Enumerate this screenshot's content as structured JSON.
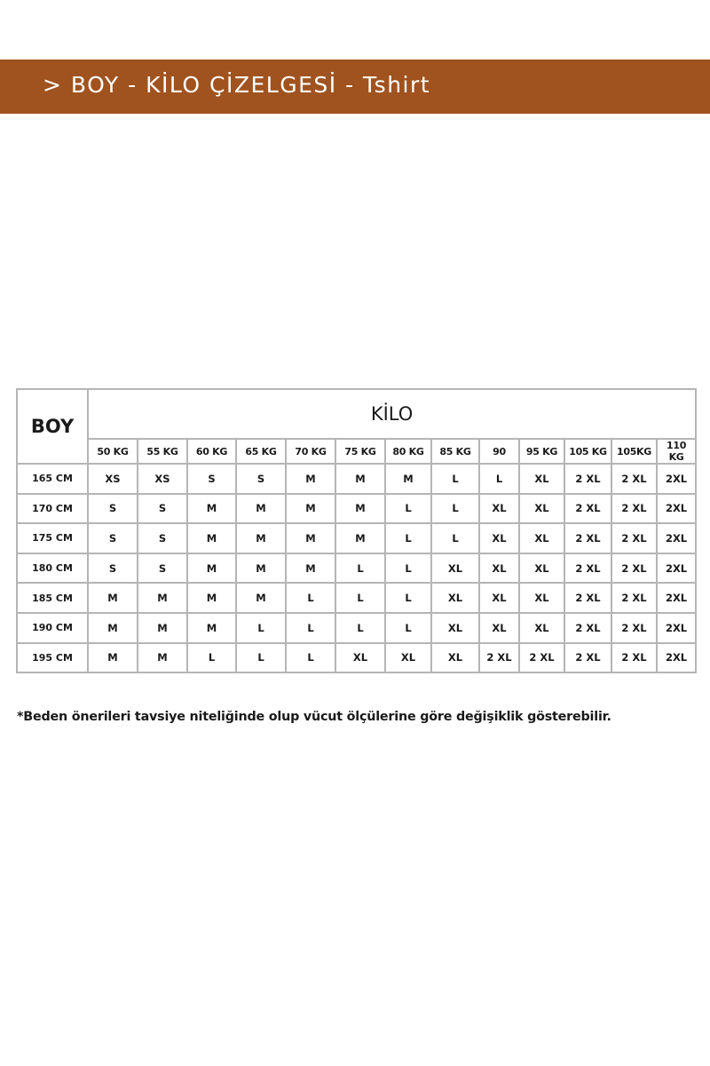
{
  "header": {
    "title": "> BOY - KİLO ÇİZELGESİ - Tshirt",
    "background_color": "#A0531F"
  },
  "table": {
    "row_header_label": "BOY",
    "column_group_label": "KİLO",
    "weights": [
      "50 KG",
      "55 KG",
      "60 KG",
      "65 KG",
      "70 KG",
      "75 KG",
      "80 KG",
      "85 KG",
      "90",
      "95 KG",
      "105 KG",
      "105KG",
      "110 KG"
    ],
    "rows": [
      {
        "height": "165 CM",
        "sizes": [
          "XS",
          "XS",
          "S",
          "S",
          "M",
          "M",
          "M",
          "L",
          "L",
          "XL",
          "2 XL",
          "2 XL",
          "2XL"
        ]
      },
      {
        "height": "170 CM",
        "sizes": [
          "S",
          "S",
          "M",
          "M",
          "M",
          "M",
          "L",
          "L",
          "XL",
          "XL",
          "2 XL",
          "2 XL",
          "2XL"
        ]
      },
      {
        "height": "175 CM",
        "sizes": [
          "S",
          "S",
          "M",
          "M",
          "M",
          "M",
          "L",
          "L",
          "XL",
          "XL",
          "2 XL",
          "2 XL",
          "2XL"
        ]
      },
      {
        "height": "180 CM",
        "sizes": [
          "S",
          "S",
          "M",
          "M",
          "M",
          "L",
          "L",
          "XL",
          "XL",
          "XL",
          "2 XL",
          "2 XL",
          "2XL"
        ]
      },
      {
        "height": "185 CM",
        "sizes": [
          "M",
          "M",
          "M",
          "M",
          "L",
          "L",
          "L",
          "XL",
          "XL",
          "XL",
          "2 XL",
          "2 XL",
          "2XL"
        ]
      },
      {
        "height": "190 CM",
        "sizes": [
          "M",
          "M",
          "M",
          "L",
          "L",
          "L",
          "L",
          "XL",
          "XL",
          "XL",
          "2 XL",
          "2 XL",
          "2XL"
        ]
      },
      {
        "height": "195 CM",
        "sizes": [
          "M",
          "M",
          "L",
          "L",
          "L",
          "XL",
          "XL",
          "XL",
          "2 XL",
          "2 XL",
          "2 XL",
          "2 XL",
          "2XL"
        ]
      }
    ]
  },
  "footnote": "*Beden önerileri tavsiye niteliğinde olup vücut ölçülerine göre değişiklik gösterebilir."
}
